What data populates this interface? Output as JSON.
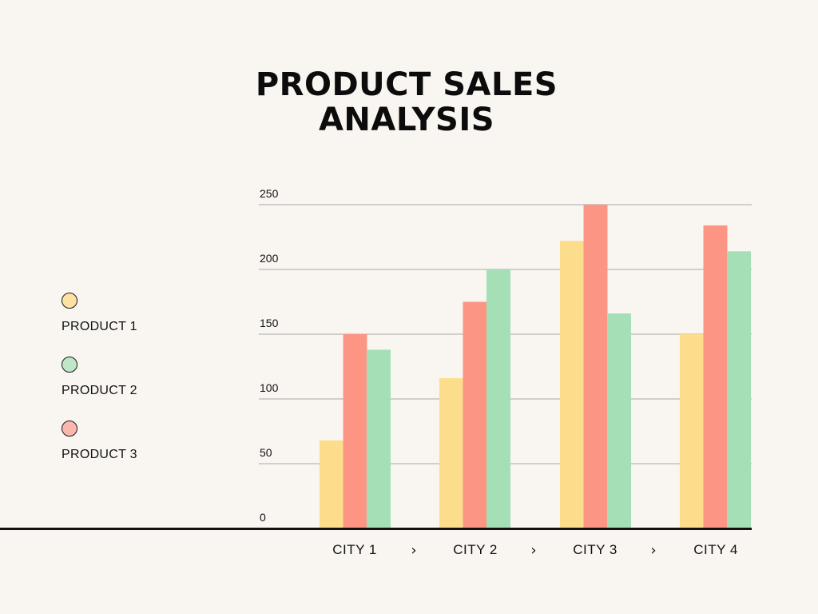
{
  "chart_data": {
    "type": "bar",
    "title": "PRODUCT SALES ANALYSIS",
    "title_lines": [
      "PRODUCT SALES",
      "ANALYSIS"
    ],
    "categories": [
      "CITY 1",
      "CITY 2",
      "CITY 3",
      "CITY 4"
    ],
    "series": [
      {
        "name": "PRODUCT 1",
        "color": "#fcdd8c",
        "values": [
          68,
          116,
          222,
          150
        ]
      },
      {
        "name": "PRODUCT 3",
        "color": "#fd9585",
        "values": [
          150,
          175,
          250,
          234
        ]
      },
      {
        "name": "PRODUCT 2",
        "color": "#a5dfb6",
        "values": [
          138,
          200,
          166,
          214
        ]
      }
    ],
    "ylim": [
      0,
      250
    ],
    "yticks": [
      "0",
      "50",
      "100",
      "150",
      "200",
      "250"
    ],
    "grid": true,
    "legend_position": "left",
    "separator_icon": "chevron-right-icon",
    "separator_glyph": "›"
  },
  "legend": [
    {
      "label": "PRODUCT 1",
      "color": "#fde2a3"
    },
    {
      "label": "PRODUCT 2",
      "color": "#bfe6c9"
    },
    {
      "label": "PRODUCT 3",
      "color": "#f9b7ae"
    }
  ]
}
